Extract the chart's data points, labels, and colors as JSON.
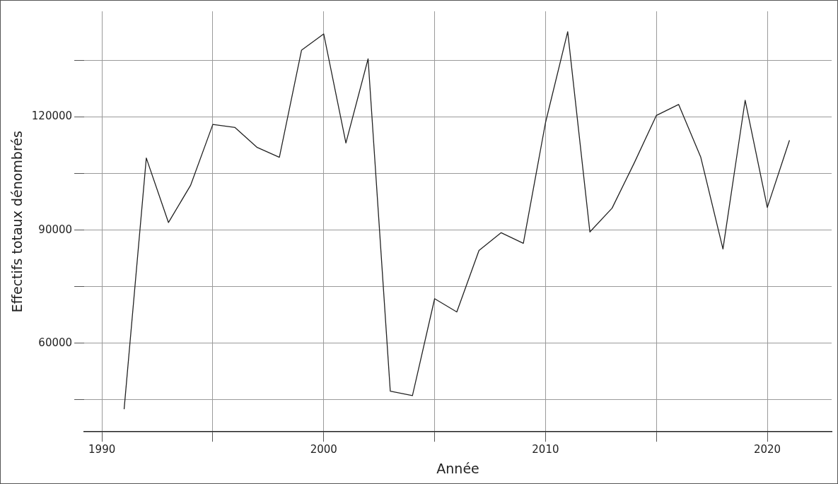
{
  "chart_data": {
    "type": "line",
    "xlabel": "Année",
    "ylabel": "Effectifs totaux dénombrés",
    "x": [
      1991,
      1992,
      1993,
      1994,
      1995,
      1996,
      1997,
      1998,
      1999,
      2000,
      2001,
      2002,
      2003,
      2004,
      2005,
      2006,
      2007,
      2008,
      2009,
      2010,
      2011,
      2012,
      2013,
      2014,
      2015,
      2016,
      2017,
      2018,
      2019,
      2020,
      2021
    ],
    "series": [
      {
        "color": "#222222",
        "values": [
          42500,
          109100,
          92000,
          101900,
          118000,
          117200,
          111900,
          109300,
          137700,
          142000,
          113100,
          135400,
          47300,
          46100,
          71800,
          68300,
          84600,
          89300,
          86500,
          118500,
          142600,
          89500,
          95800,
          107800,
          120400,
          123300,
          109300,
          85000,
          124400,
          96000,
          113800
        ]
      }
    ],
    "xlim": [
      1989.2,
      2022.9
    ],
    "xticks": [
      1990,
      {
        "value": 1995,
        "label": null
      },
      2000,
      {
        "value": 2005,
        "label": null
      },
      2010,
      {
        "value": 2015,
        "label": null
      },
      2020
    ],
    "ylim": [
      36500,
      148000
    ],
    "yticks": [
      {
        "value": 45000,
        "label": null
      },
      60000,
      {
        "value": 75000,
        "label": null
      },
      90000,
      {
        "value": 105000,
        "label": null
      },
      120000,
      {
        "value": 135000,
        "label": null
      }
    ],
    "grid": true,
    "marker": "none",
    "line_style": "solid"
  }
}
